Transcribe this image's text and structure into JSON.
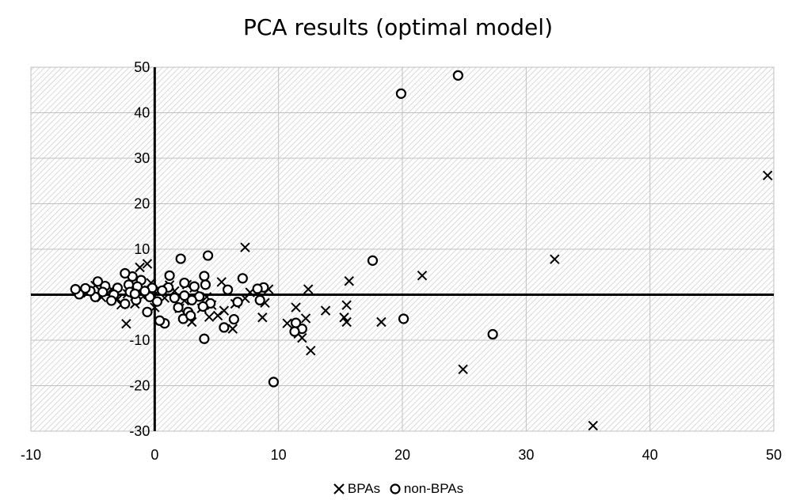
{
  "chart_data": {
    "type": "scatter",
    "title": "PCA results (optimal model)",
    "xlabel": "",
    "ylabel": "",
    "xlim": [
      -10,
      50
    ],
    "ylim": [
      -30,
      50
    ],
    "xticks": [
      -10,
      0,
      10,
      20,
      30,
      40,
      50
    ],
    "yticks": [
      -30,
      -20,
      -10,
      0,
      10,
      20,
      30,
      40,
      50
    ],
    "legend_position": "bottom",
    "grid": true,
    "series": [
      {
        "name": "BPAs",
        "marker": "x",
        "color": "#000000",
        "points": [
          [
            49.5,
            26.2
          ],
          [
            32.3,
            7.8
          ],
          [
            35.4,
            -28.8
          ],
          [
            24.9,
            -16.4
          ],
          [
            21.6,
            4.2
          ],
          [
            18.3,
            -6.0
          ],
          [
            15.7,
            3.0
          ],
          [
            15.5,
            -2.3
          ],
          [
            15.5,
            -6.0
          ],
          [
            15.3,
            -5.0
          ],
          [
            13.8,
            -3.5
          ],
          [
            12.4,
            1.2
          ],
          [
            12.6,
            -12.3
          ],
          [
            12.2,
            -5.2
          ],
          [
            11.9,
            -9.5
          ],
          [
            11.6,
            -8.6
          ],
          [
            11.4,
            -2.8
          ],
          [
            11.4,
            -6.5
          ],
          [
            10.7,
            -6.3
          ],
          [
            9.2,
            1.2
          ],
          [
            8.9,
            -1.8
          ],
          [
            8.7,
            -5.0
          ],
          [
            7.7,
            0.5
          ],
          [
            7.3,
            10.4
          ],
          [
            7.3,
            -0.8
          ],
          [
            6.5,
            -2.0
          ],
          [
            6.3,
            -7.5
          ],
          [
            5.6,
            -3.5
          ],
          [
            5.4,
            2.8
          ],
          [
            5.1,
            -4.6
          ],
          [
            4.6,
            -2.3
          ],
          [
            4.4,
            -4.9
          ],
          [
            4.2,
            -0.5
          ],
          [
            3.8,
            -3.0
          ],
          [
            3.0,
            -6.0
          ],
          [
            2.6,
            2.2
          ],
          [
            2.4,
            -1.3
          ],
          [
            2.0,
            -3.0
          ],
          [
            1.6,
            0.8
          ],
          [
            1.2,
            2.1
          ],
          [
            0.8,
            -0.7
          ],
          [
            0.4,
            1.1
          ],
          [
            0.0,
            -2.8
          ],
          [
            -0.3,
            2.6
          ],
          [
            -0.6,
            6.8
          ],
          [
            -1.2,
            6.0
          ],
          [
            -0.5,
            1.0
          ],
          [
            -1.8,
            1.4
          ],
          [
            -2.2,
            0.2
          ],
          [
            -2.3,
            -6.4
          ],
          [
            -2.7,
            -2.2
          ],
          [
            -3.0,
            -1.0
          ],
          [
            -3.5,
            1.2
          ],
          [
            -4.3,
            -0.6
          ],
          [
            -4.8,
            2.0
          ],
          [
            -5.4,
            0.4
          ],
          [
            -6.0,
            1.0
          ],
          [
            -1.6,
            -2.0
          ],
          [
            3.2,
            1.5
          ],
          [
            -0.9,
            -0.3
          ]
        ]
      },
      {
        "name": "non-BPAs",
        "marker": "o",
        "color": "#000000",
        "points": [
          [
            24.5,
            48.2
          ],
          [
            19.9,
            44.2
          ],
          [
            27.3,
            -8.7
          ],
          [
            20.1,
            -5.3
          ],
          [
            17.6,
            7.5
          ],
          [
            9.6,
            -19.2
          ],
          [
            11.9,
            -7.5
          ],
          [
            11.4,
            -6.2
          ],
          [
            11.3,
            -8.1
          ],
          [
            8.8,
            1.6
          ],
          [
            8.5,
            -1.2
          ],
          [
            8.3,
            1.3
          ],
          [
            7.1,
            3.6
          ],
          [
            6.7,
            -1.6
          ],
          [
            6.4,
            -5.4
          ],
          [
            5.9,
            1.1
          ],
          [
            5.6,
            -7.2
          ],
          [
            4.3,
            8.6
          ],
          [
            4.0,
            -9.7
          ],
          [
            4.1,
            2.2
          ],
          [
            4.0,
            4.1
          ],
          [
            3.6,
            -0.4
          ],
          [
            3.2,
            1.8
          ],
          [
            3.0,
            -1.2
          ],
          [
            2.7,
            -3.8
          ],
          [
            2.4,
            -0.2
          ],
          [
            2.4,
            2.6
          ],
          [
            2.3,
            -5.3
          ],
          [
            2.1,
            7.9
          ],
          [
            1.6,
            -0.7
          ],
          [
            1.2,
            4.2
          ],
          [
            1.1,
            1.6
          ],
          [
            0.8,
            -6.3
          ],
          [
            0.6,
            0.9
          ],
          [
            0.2,
            -1.5
          ],
          [
            0.4,
            -5.7
          ],
          [
            -0.2,
            1.5
          ],
          [
            -0.4,
            -0.5
          ],
          [
            -0.6,
            -3.8
          ],
          [
            -0.8,
            0.8
          ],
          [
            -1.1,
            3.2
          ],
          [
            -1.4,
            1.8
          ],
          [
            -1.5,
            -1.2
          ],
          [
            -1.8,
            4.0
          ],
          [
            -2.1,
            2.2
          ],
          [
            -2.4,
            4.7
          ],
          [
            -2.4,
            -2.0
          ],
          [
            -3.0,
            1.5
          ],
          [
            -3.3,
            0.0
          ],
          [
            -3.5,
            -1.3
          ],
          [
            -4.0,
            1.9
          ],
          [
            -4.2,
            0.6
          ],
          [
            -4.6,
            2.9
          ],
          [
            -4.8,
            -0.5
          ],
          [
            -5.2,
            0.8
          ],
          [
            -5.6,
            1.4
          ],
          [
            -6.1,
            0.1
          ],
          [
            -6.4,
            1.2
          ],
          [
            -2.0,
            0.6
          ],
          [
            -1.6,
            0.2
          ],
          [
            1.9,
            -2.8
          ],
          [
            2.9,
            -4.6
          ],
          [
            4.5,
            -1.9
          ],
          [
            3.9,
            -2.6
          ]
        ]
      }
    ]
  }
}
